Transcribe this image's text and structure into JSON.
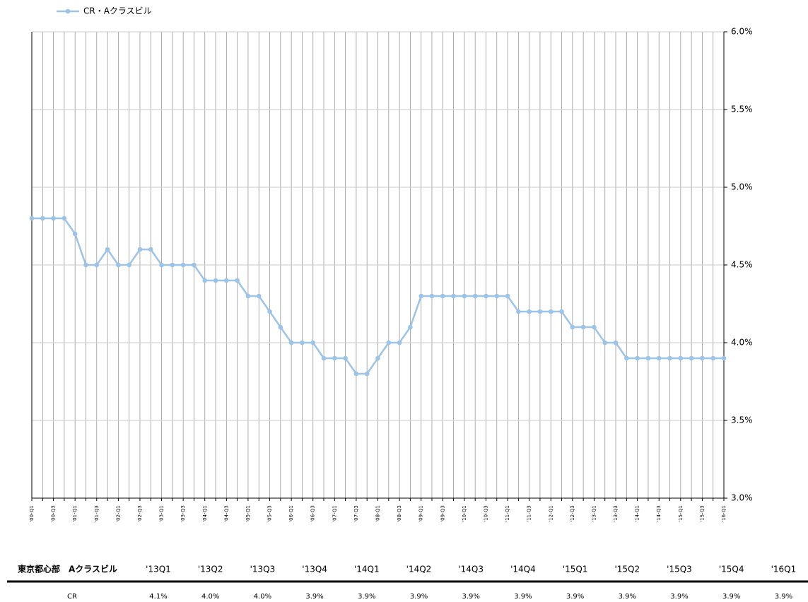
{
  "chart_data": {
    "type": "line",
    "categories": [
      "'00-Q1",
      null,
      "'00-Q3",
      null,
      "'01-Q1",
      null,
      "'01-Q3",
      null,
      "'02-Q1",
      null,
      "'02-Q3",
      null,
      "'03-Q1",
      null,
      "'03-Q3",
      null,
      "'04-Q1",
      null,
      "'04-Q3",
      null,
      "'05-Q1",
      null,
      "'05-Q3",
      null,
      "'06-Q1",
      null,
      "'06-Q3",
      null,
      "'07-Q1",
      null,
      "'07-Q3",
      null,
      "'08-Q1",
      null,
      "'08-Q3",
      null,
      "'09-Q1",
      null,
      "'09-Q3",
      null,
      "'10-Q1",
      null,
      "'10-Q3",
      null,
      "'11-Q1",
      null,
      "'11-Q3",
      null,
      "'12-Q1",
      null,
      "'12-Q3",
      null,
      "'13-Q1",
      null,
      "'13-Q3",
      null,
      "'14-Q1",
      null,
      "'14-Q3",
      null,
      "'15-Q1",
      null,
      "'15-Q3",
      null,
      "'16-Q1"
    ],
    "series": [
      {
        "name": "CR・Aクラスビル",
        "color": "#9dc3e6",
        "values": [
          4.8,
          4.8,
          4.8,
          4.8,
          4.7,
          4.5,
          4.5,
          4.6,
          4.5,
          4.5,
          4.6,
          4.6,
          4.5,
          4.5,
          4.5,
          4.5,
          4.4,
          4.4,
          4.4,
          4.4,
          4.3,
          4.3,
          4.2,
          4.1,
          4.0,
          4.0,
          4.0,
          3.9,
          3.9,
          3.9,
          3.8,
          3.8,
          3.9,
          4.0,
          4.0,
          4.1,
          4.3,
          4.3,
          4.3,
          4.3,
          4.3,
          4.3,
          4.3,
          4.3,
          4.3,
          4.2,
          4.2,
          4.2,
          4.2,
          4.2,
          4.1,
          4.1,
          4.1,
          4.0,
          4.0,
          3.9,
          3.9,
          3.9,
          3.9,
          3.9,
          3.9,
          3.9,
          3.9,
          3.9,
          3.9
        ]
      }
    ],
    "ylim": [
      3,
      6
    ],
    "yticks": [
      {
        "value": 3,
        "label": "3.0%"
      },
      {
        "value": 3.5,
        "label": "3.5%"
      },
      {
        "value": 4,
        "label": "4.0%"
      },
      {
        "value": 4.5,
        "label": "4.5%"
      },
      {
        "value": 5,
        "label": "5.0%"
      },
      {
        "value": 5.5,
        "label": "5.5%"
      },
      {
        "value": 6,
        "label": "6.0%"
      }
    ],
    "grid": true,
    "legend": "top-left"
  },
  "table": {
    "header": [
      "東京都心部　Aクラスビル",
      "'13Q1",
      "'13Q2",
      "'13Q3",
      "'13Q4",
      "'14Q1",
      "'14Q2",
      "'14Q3",
      "'14Q4",
      "'15Q1",
      "'15Q2",
      "'15Q3",
      "'15Q4",
      "'16Q1"
    ],
    "rows": [
      [
        "CR",
        "4.1%",
        "4.0%",
        "4.0%",
        "3.9%",
        "3.9%",
        "3.9%",
        "3.9%",
        "3.9%",
        "3.9%",
        "3.9%",
        "3.9%",
        "3.9%",
        "3.9%"
      ]
    ]
  }
}
